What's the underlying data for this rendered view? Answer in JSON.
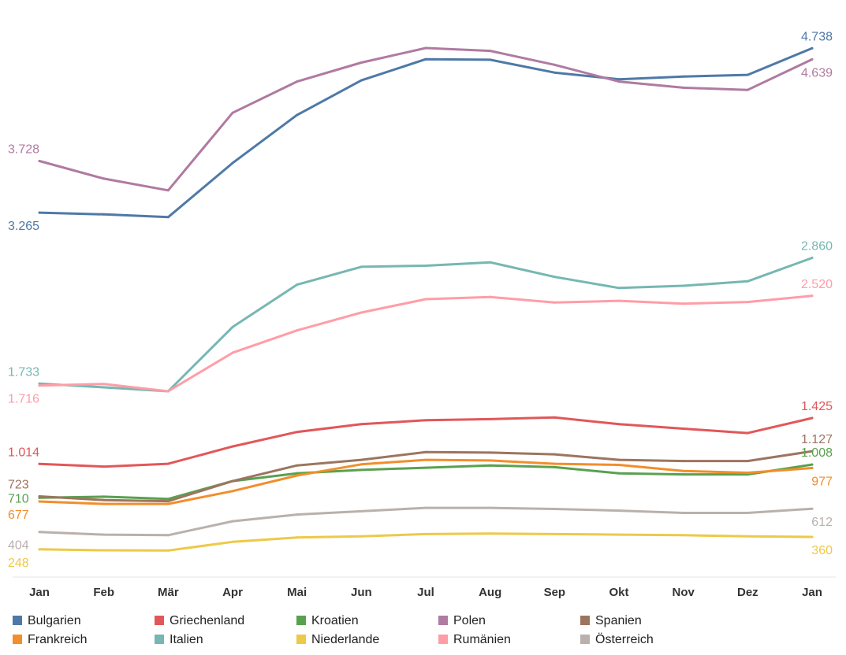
{
  "chart_data": {
    "type": "line",
    "title": "",
    "xlabel": "",
    "ylabel": "",
    "ylim": [
      0,
      5100
    ],
    "grid": false,
    "legend_position": "bottom",
    "categories": [
      "Jan",
      "Feb",
      "Mär",
      "Apr",
      "Mai",
      "Jun",
      "Jul",
      "Aug",
      "Sep",
      "Okt",
      "Nov",
      "Dez",
      "Jan"
    ],
    "series": [
      {
        "name": "Bulgarien",
        "color": "#4e79a7",
        "values": [
          3265,
          3250,
          3225,
          3710,
          4140,
          4450,
          4640,
          4635,
          4520,
          4460,
          4485,
          4500,
          4738
        ],
        "labels": [
          {
            "index": 0,
            "text": "3.265",
            "pos": "below"
          },
          {
            "index": 12,
            "text": "4.738",
            "pos": "above"
          }
        ]
      },
      {
        "name": "Griechenland",
        "color": "#e15759",
        "values": [
          1014,
          990,
          1015,
          1170,
          1300,
          1370,
          1405,
          1415,
          1430,
          1370,
          1330,
          1290,
          1425
        ],
        "labels": [
          {
            "index": 0,
            "text": "1.014",
            "pos": "above"
          },
          {
            "index": 12,
            "text": "1.425",
            "pos": "above"
          }
        ]
      },
      {
        "name": "Kroatien",
        "color": "#59a14f",
        "values": [
          710,
          720,
          700,
          860,
          930,
          960,
          980,
          1000,
          985,
          930,
          920,
          920,
          1008
        ],
        "labels": [
          {
            "index": 0,
            "text": "710",
            "pos": "left"
          },
          {
            "index": 12,
            "text": "1.008",
            "pos": "above"
          }
        ]
      },
      {
        "name": "Polen",
        "color": "#b07aa1",
        "values": [
          3728,
          3570,
          3465,
          4160,
          4440,
          4610,
          4740,
          4715,
          4590,
          4440,
          4385,
          4365,
          4639
        ],
        "labels": [
          {
            "index": 0,
            "text": "3.728",
            "pos": "above"
          },
          {
            "index": 12,
            "text": "4.639",
            "pos": "below"
          }
        ]
      },
      {
        "name": "Spanien",
        "color": "#9c755f",
        "values": [
          723,
          690,
          680,
          860,
          1000,
          1050,
          1120,
          1115,
          1100,
          1050,
          1040,
          1040,
          1127
        ],
        "labels": [
          {
            "index": 0,
            "text": "723",
            "pos": "above"
          },
          {
            "index": 12,
            "text": "1.127",
            "pos": "above"
          }
        ]
      },
      {
        "name": "Frankreich",
        "color": "#f28e2b",
        "values": [
          677,
          655,
          655,
          770,
          910,
          1010,
          1050,
          1045,
          1015,
          1005,
          950,
          935,
          977
        ],
        "labels": [
          {
            "index": 0,
            "text": "677",
            "pos": "below"
          },
          {
            "index": 12,
            "text": "977",
            "pos": "below"
          }
        ]
      },
      {
        "name": "Italien",
        "color": "#76b7b2",
        "values": [
          1733,
          1700,
          1665,
          2240,
          2620,
          2780,
          2790,
          2820,
          2690,
          2590,
          2610,
          2650,
          2860
        ],
        "labels": [
          {
            "index": 0,
            "text": "1.733",
            "pos": "above"
          },
          {
            "index": 12,
            "text": "2.860",
            "pos": "above"
          }
        ]
      },
      {
        "name": "Niederlande",
        "color": "#edc948",
        "values": [
          248,
          240,
          238,
          315,
          355,
          365,
          385,
          390,
          385,
          380,
          375,
          365,
          360
        ],
        "labels": [
          {
            "index": 0,
            "text": "248",
            "pos": "below"
          },
          {
            "index": 12,
            "text": "360",
            "pos": "below"
          }
        ]
      },
      {
        "name": "Rumänien",
        "color": "#ff9da7",
        "values": [
          1716,
          1730,
          1665,
          2010,
          2210,
          2370,
          2490,
          2510,
          2460,
          2475,
          2450,
          2465,
          2520
        ],
        "labels": [
          {
            "index": 0,
            "text": "1.716",
            "pos": "below"
          },
          {
            "index": 12,
            "text": "2.520",
            "pos": "above"
          }
        ]
      },
      {
        "name": "Österreich",
        "color": "#bab0ac",
        "values": [
          404,
          380,
          375,
          500,
          560,
          590,
          620,
          620,
          610,
          595,
          575,
          575,
          612
        ],
        "labels": [
          {
            "index": 0,
            "text": "404",
            "pos": "below"
          },
          {
            "index": 12,
            "text": "612",
            "pos": "below"
          }
        ]
      }
    ]
  }
}
